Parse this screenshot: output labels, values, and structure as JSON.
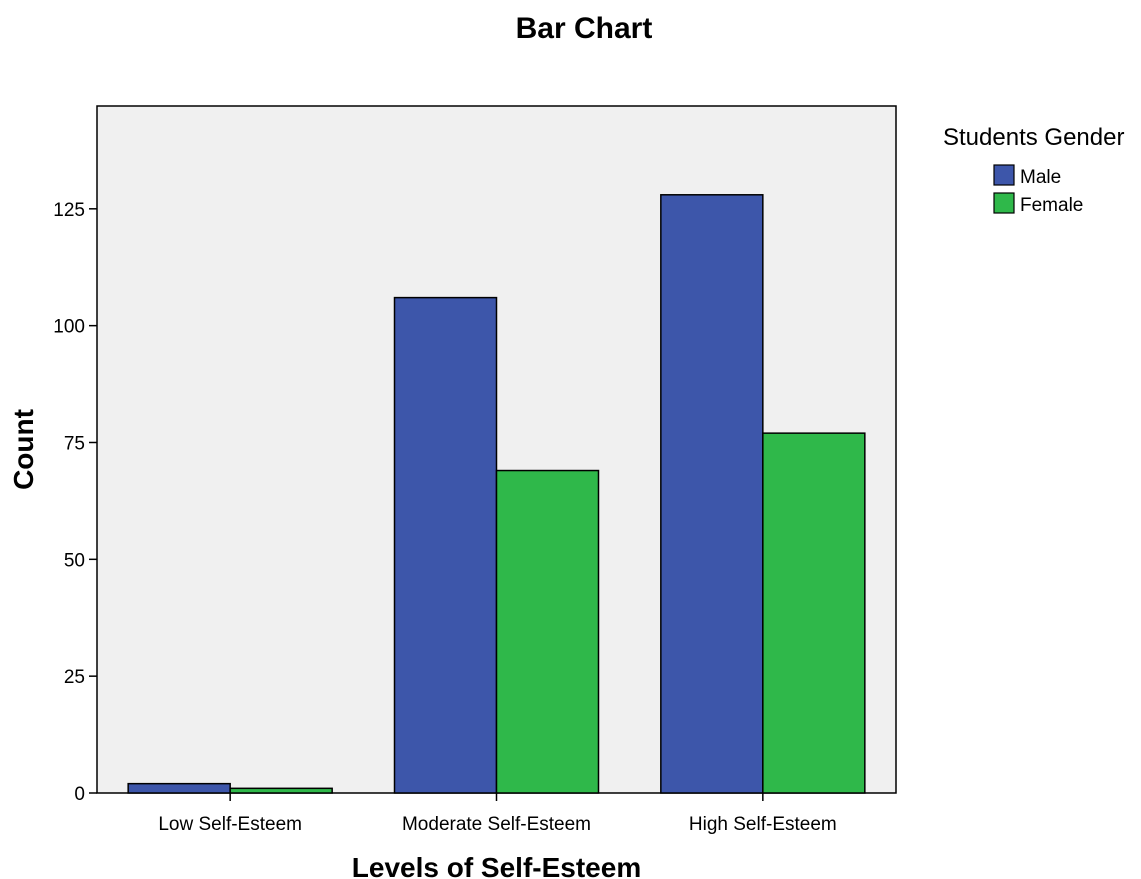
{
  "chart_data": {
    "type": "bar",
    "title": "Bar Chart",
    "xlabel": "Levels of Self-Esteem",
    "ylabel": "Count",
    "categories": [
      "Low Self-Esteem",
      "Moderate Self-Esteem",
      "High Self-Esteem"
    ],
    "series": [
      {
        "name": "Male",
        "values": [
          2,
          106,
          128
        ],
        "color": "#3d56aa"
      },
      {
        "name": "Female",
        "values": [
          1,
          69,
          77
        ],
        "color": "#2fb84a"
      }
    ],
    "yticks": [
      0,
      25,
      50,
      75,
      100,
      125
    ],
    "ylim": [
      0,
      147
    ],
    "legend_title": "Students Gender",
    "legend_position": "top-right",
    "grid": false,
    "plot_background": "#f0f0f0"
  }
}
